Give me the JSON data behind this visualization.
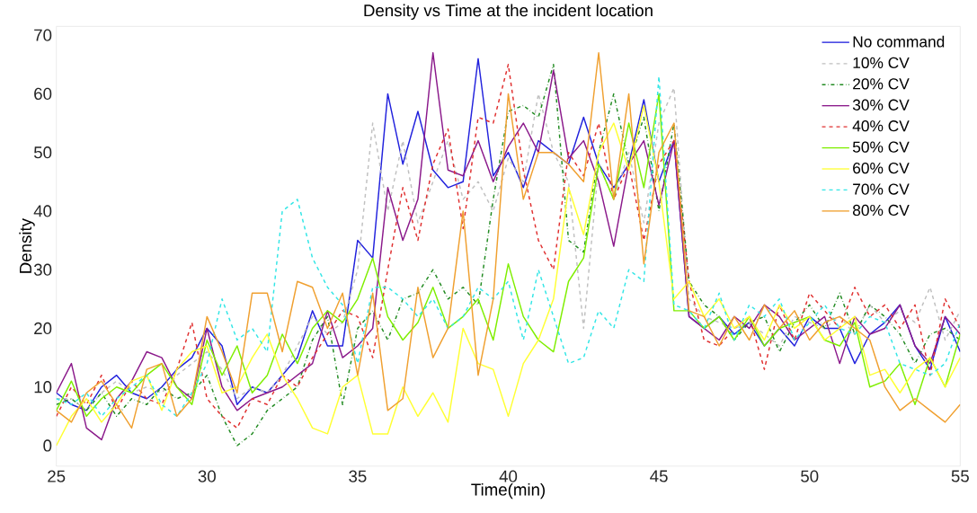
{
  "chart_data": {
    "type": "line",
    "title": "Density vs Time at the incident location",
    "xlabel": "Time(min)",
    "ylabel": "Density",
    "xlim": [
      25,
      55
    ],
    "xticks": [
      25,
      30,
      35,
      40,
      45,
      50,
      55
    ],
    "ylim": [
      -3.5,
      71.5
    ],
    "yticks": [
      0,
      10,
      20,
      30,
      40,
      50,
      60,
      70
    ],
    "legend": "top right",
    "marker": "none",
    "x": [
      25,
      25.5,
      26,
      26.5,
      27,
      27.5,
      28,
      28.5,
      29,
      29.5,
      30,
      30.5,
      31,
      31.5,
      32,
      32.5,
      33,
      33.5,
      34,
      34.5,
      35,
      35.5,
      36,
      36.5,
      37,
      37.5,
      38,
      38.5,
      39,
      39.5,
      40,
      40.5,
      41,
      41.5,
      42,
      42.5,
      43,
      43.5,
      44,
      44.5,
      45,
      45.5,
      46,
      46.5,
      47,
      47.5,
      48,
      48.5,
      49,
      49.5,
      50,
      50.5,
      51,
      51.5,
      52,
      52.5,
      53,
      53.5,
      54,
      54.5,
      55
    ],
    "series": [
      {
        "name": "No command",
        "color": "#2222dd",
        "line_style": "solid",
        "values": [
          9,
          7,
          6,
          10,
          12,
          9,
          8,
          10,
          13,
          15,
          20,
          17,
          7,
          10,
          9,
          12,
          15,
          23,
          17,
          17,
          35,
          32,
          60,
          48,
          57,
          47,
          44,
          45,
          66,
          46,
          50,
          44,
          52,
          50,
          48,
          56,
          48,
          44,
          48,
          59,
          45,
          52,
          22,
          20,
          22,
          19,
          21,
          17,
          20,
          17,
          22,
          20,
          20,
          14,
          19,
          21,
          24,
          17,
          13,
          22,
          16
        ]
      },
      {
        "name": "10% CV",
        "color": "#c0c0c0",
        "line_style": "dashed",
        "values": [
          8,
          8,
          6,
          9,
          11,
          9,
          10,
          9,
          12,
          14,
          16,
          13,
          8,
          10,
          9,
          12,
          17,
          22,
          19,
          21,
          30,
          55,
          40,
          52,
          38,
          45,
          52,
          42,
          45,
          40,
          49,
          45,
          60,
          50,
          45,
          20,
          48,
          42,
          50,
          38,
          55,
          61,
          25,
          22,
          21,
          20,
          21,
          19,
          17,
          22,
          21,
          20,
          22,
          19,
          24,
          21,
          23,
          21,
          27,
          18,
          23
        ]
      },
      {
        "name": "20% CV",
        "color": "#228b22",
        "line_style": "dashdot",
        "values": [
          7,
          8,
          6,
          9,
          5,
          8,
          7,
          10,
          8,
          9,
          12,
          5,
          0,
          2,
          6,
          8,
          10,
          18,
          22,
          7,
          20,
          23,
          18,
          25,
          26,
          30,
          25,
          27,
          24,
          42,
          57,
          58,
          56,
          65,
          35,
          33,
          50,
          60,
          48,
          56,
          40,
          55,
          28,
          24,
          22,
          18,
          21,
          22,
          16,
          21,
          24,
          20,
          26,
          19,
          24,
          22,
          19,
          14,
          19,
          20,
          18
        ]
      },
      {
        "name": "30% CV",
        "color": "#8b1a8b",
        "line_style": "solid",
        "values": [
          9,
          14,
          3,
          1,
          8,
          11,
          16,
          15,
          10,
          8,
          20,
          10,
          6,
          8,
          9,
          10,
          12,
          14,
          23,
          15,
          17,
          20,
          44,
          35,
          42,
          67,
          47,
          46,
          52,
          45,
          51,
          55,
          50,
          64,
          49,
          52,
          45,
          34,
          48,
          52,
          41,
          52,
          22,
          20,
          18,
          22,
          20,
          24,
          22,
          18,
          20,
          22,
          14,
          22,
          19,
          20,
          24,
          17,
          14,
          22,
          19
        ]
      },
      {
        "name": "40% CV",
        "color": "#e03030",
        "line_style": "dashed",
        "values": [
          5,
          10,
          7,
          12,
          6,
          11,
          8,
          7,
          13,
          21,
          8,
          5,
          3,
          8,
          7,
          12,
          10,
          15,
          19,
          23,
          22,
          15,
          30,
          44,
          35,
          48,
          54,
          37,
          56,
          55,
          65,
          47,
          35,
          30,
          50,
          46,
          55,
          42,
          48,
          35,
          48,
          52,
          28,
          18,
          17,
          20,
          22,
          13,
          24,
          18,
          26,
          23,
          20,
          27,
          22,
          24,
          20,
          24,
          12,
          25,
          20
        ]
      },
      {
        "name": "50% CV",
        "color": "#7fee00",
        "line_style": "solid",
        "values": [
          6,
          11,
          5,
          8,
          10,
          9,
          12,
          14,
          10,
          7,
          18,
          12,
          17,
          9,
          12,
          19,
          14,
          20,
          23,
          21,
          25,
          32,
          22,
          18,
          21,
          27,
          20,
          22,
          25,
          18,
          31,
          22,
          18,
          16,
          28,
          32,
          48,
          42,
          55,
          44,
          60,
          23,
          23,
          20,
          22,
          18,
          22,
          17,
          20,
          21,
          22,
          18,
          17,
          21,
          10,
          11,
          14,
          7,
          15,
          10,
          19
        ]
      },
      {
        "name": "60% CV",
        "color": "#ffff33",
        "line_style": "solid",
        "values": [
          0,
          5,
          8,
          4,
          7,
          11,
          12,
          6,
          13,
          16,
          17,
          9,
          10,
          15,
          19,
          12,
          8,
          3,
          2,
          10,
          12,
          2,
          2,
          10,
          5,
          9,
          4,
          20,
          14,
          13,
          5,
          14,
          18,
          25,
          44,
          36,
          50,
          55,
          47,
          58,
          45,
          25,
          28,
          22,
          25,
          20,
          22,
          18,
          24,
          20,
          22,
          18,
          20,
          22,
          12,
          13,
          9,
          13,
          15,
          10,
          15
        ]
      },
      {
        "name": "70% CV",
        "color": "#33e6e6",
        "line_style": "dashed",
        "values": [
          8,
          7,
          9,
          5,
          8,
          10,
          12,
          7,
          5,
          9,
          14,
          25,
          18,
          20,
          16,
          40,
          42,
          32,
          27,
          24,
          14,
          27,
          27,
          25,
          22,
          25,
          20,
          22,
          27,
          25,
          28,
          18,
          30,
          22,
          14,
          15,
          23,
          20,
          30,
          28,
          63,
          24,
          23,
          20,
          26,
          18,
          24,
          22,
          25,
          18,
          21,
          24,
          20,
          19,
          22,
          21,
          14,
          13,
          12,
          14,
          21
        ]
      },
      {
        "name": "80% CV",
        "color": "#f0a030",
        "line_style": "solid",
        "values": [
          6,
          4,
          9,
          11,
          7,
          3,
          13,
          14,
          5,
          8,
          22,
          16,
          9,
          26,
          26,
          16,
          28,
          27,
          20,
          26,
          12,
          26,
          6,
          8,
          27,
          15,
          20,
          40,
          12,
          25,
          60,
          42,
          50,
          50,
          48,
          45,
          67,
          42,
          60,
          31,
          50,
          55,
          23,
          22,
          17,
          22,
          18,
          24,
          20,
          23,
          18,
          21,
          22,
          20,
          18,
          10,
          6,
          8,
          6,
          4,
          7
        ]
      }
    ]
  }
}
